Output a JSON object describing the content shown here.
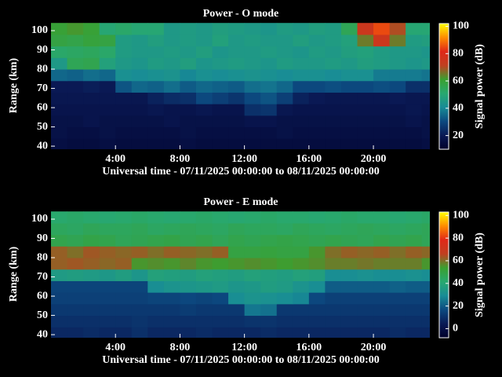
{
  "chart_data": [
    {
      "type": "heatmap",
      "title": "Power - O mode",
      "xlabel": "Universal time - 07/11/2025 00:00:00 to 08/11/2025 00:00:00",
      "ylabel": "Range (km)",
      "colorbar_label": "Signal power (dB)",
      "x": [
        0,
        1,
        2,
        3,
        4,
        5,
        6,
        7,
        8,
        9,
        10,
        11,
        12,
        13,
        14,
        15,
        16,
        17,
        18,
        19,
        20,
        21,
        22,
        23,
        23.5
      ],
      "y": [
        38,
        44,
        50,
        56,
        62,
        68,
        74,
        80,
        86,
        92,
        98,
        104
      ],
      "values": [
        [
          16,
          15,
          15,
          16,
          15,
          15,
          15,
          15,
          16,
          15,
          15,
          15,
          15,
          15,
          15,
          15,
          15,
          15,
          15,
          15,
          15,
          15,
          15,
          16
        ],
        [
          17,
          16,
          16,
          17,
          16,
          16,
          16,
          16,
          17,
          16,
          16,
          16,
          16,
          16,
          17,
          16,
          16,
          16,
          16,
          16,
          16,
          16,
          16,
          17
        ],
        [
          17,
          17,
          18,
          17,
          17,
          17,
          17,
          18,
          17,
          17,
          17,
          17,
          18,
          18,
          17,
          17,
          17,
          17,
          17,
          17,
          17,
          17,
          18,
          17
        ],
        [
          18,
          18,
          18,
          18,
          18,
          18,
          19,
          18,
          18,
          19,
          18,
          18,
          25,
          26,
          19,
          18,
          18,
          18,
          18,
          18,
          18,
          18,
          19,
          18
        ],
        [
          19,
          19,
          19,
          19,
          19,
          19,
          22,
          24,
          25,
          30,
          28,
          26,
          30,
          32,
          28,
          22,
          20,
          19,
          19,
          19,
          19,
          20,
          19,
          19
        ],
        [
          20,
          20,
          21,
          20,
          32,
          35,
          34,
          36,
          33,
          35,
          34,
          33,
          36,
          37,
          35,
          30,
          30,
          31,
          30,
          30,
          31,
          30,
          25,
          25
        ],
        [
          35,
          34,
          36,
          35,
          42,
          41,
          42,
          43,
          40,
          42,
          41,
          42,
          43,
          42,
          41,
          42,
          42,
          41,
          42,
          42,
          38,
          38,
          38,
          37
        ],
        [
          45,
          55,
          56,
          48,
          45,
          44,
          46,
          45,
          47,
          44,
          45,
          46,
          45,
          44,
          46,
          45,
          45,
          46,
          45,
          47,
          46,
          45,
          44,
          45
        ],
        [
          52,
          53,
          54,
          52,
          46,
          45,
          45,
          46,
          45,
          47,
          44,
          45,
          45,
          46,
          45,
          44,
          46,
          45,
          47,
          48,
          46,
          45,
          45,
          44
        ],
        [
          58,
          57,
          59,
          58,
          46,
          45,
          47,
          45,
          46,
          45,
          48,
          45,
          46,
          45,
          45,
          47,
          45,
          46,
          48,
          65,
          75,
          65,
          46,
          47
        ],
        [
          60,
          62,
          60,
          50,
          52,
          50,
          50,
          45,
          46,
          45,
          47,
          46,
          45,
          44,
          46,
          45,
          47,
          46,
          55,
          75,
          85,
          70,
          50,
          50
        ]
      ],
      "xlim": [
        0,
        23.5
      ],
      "ylim": [
        38.4,
        104.5
      ],
      "xticks": [
        {
          "value": 4,
          "label": "4:00"
        },
        {
          "value": 8,
          "label": "8:00"
        },
        {
          "value": 12,
          "label": "12:00"
        },
        {
          "value": 16,
          "label": "16:00"
        },
        {
          "value": 20,
          "label": "20:00"
        }
      ],
      "yticks": [
        40,
        50,
        60,
        70,
        80,
        90,
        100
      ],
      "clim": [
        10,
        102
      ],
      "cticks": [
        20,
        40,
        60,
        80,
        100
      ],
      "colormap": [
        "#00002a",
        "#0a1a55",
        "#0c4a80",
        "#188c96",
        "#28a870",
        "#3aa030",
        "#c04020",
        "#e02818",
        "#ff8c00",
        "#ffff00"
      ]
    },
    {
      "type": "heatmap",
      "title": "Power - E mode",
      "xlabel": "Universal time - 07/11/2025 00:00:00 to 08/11/2025 00:00:00",
      "ylabel": "Range (km)",
      "colorbar_label": "Signal power (dB)",
      "x": [
        0,
        1,
        2,
        3,
        4,
        5,
        6,
        7,
        8,
        9,
        10,
        11,
        12,
        13,
        14,
        15,
        16,
        17,
        18,
        19,
        20,
        21,
        22,
        23,
        23.5
      ],
      "y": [
        38,
        44,
        50,
        56,
        62,
        68,
        74,
        80,
        86,
        92,
        98,
        104
      ],
      "values": [
        [
          8,
          8,
          9,
          8,
          8,
          10,
          8,
          8,
          8,
          9,
          8,
          8,
          8,
          9,
          8,
          8,
          8,
          8,
          8,
          8,
          8,
          9,
          8,
          8
        ],
        [
          10,
          10,
          10,
          10,
          10,
          11,
          10,
          10,
          10,
          10,
          10,
          10,
          11,
          11,
          10,
          10,
          10,
          10,
          10,
          10,
          10,
          10,
          10,
          10
        ],
        [
          12,
          12,
          12,
          12,
          12,
          12,
          12,
          12,
          13,
          12,
          12,
          12,
          25,
          24,
          12,
          12,
          12,
          12,
          12,
          12,
          12,
          12,
          12,
          12
        ],
        [
          14,
          14,
          14,
          14,
          14,
          14,
          15,
          15,
          16,
          15,
          16,
          30,
          32,
          31,
          30,
          28,
          16,
          14,
          14,
          14,
          14,
          14,
          14,
          14
        ],
        [
          15,
          15,
          15,
          15,
          15,
          15,
          30,
          32,
          33,
          34,
          35,
          33,
          34,
          36,
          35,
          32,
          30,
          20,
          20,
          20,
          20,
          21,
          20,
          20
        ],
        [
          35,
          36,
          35,
          34,
          36,
          33,
          38,
          37,
          36,
          38,
          37,
          36,
          38,
          37,
          36,
          38,
          37,
          30,
          30,
          31,
          30,
          30,
          31,
          30
        ],
        [
          62,
          63,
          62,
          61,
          62,
          55,
          56,
          55,
          57,
          55,
          54,
          55,
          56,
          55,
          54,
          55,
          56,
          58,
          58,
          59,
          58,
          58,
          58,
          55
        ],
        [
          62,
          60,
          63,
          62,
          61,
          62,
          60,
          62,
          61,
          60,
          62,
          50,
          50,
          51,
          50,
          50,
          55,
          60,
          62,
          61,
          62,
          60,
          62,
          61
        ],
        [
          48,
          47,
          49,
          48,
          46,
          47,
          48,
          49,
          47,
          48,
          46,
          48,
          47,
          48,
          49,
          48,
          47,
          48,
          47,
          46,
          48,
          47,
          48,
          46
        ],
        [
          45,
          44,
          46,
          45,
          45,
          46,
          44,
          45,
          46,
          45,
          44,
          46,
          45,
          45,
          44,
          46,
          45,
          44,
          45,
          46,
          45,
          44,
          45,
          46
        ],
        [
          42,
          43,
          42,
          41,
          42,
          43,
          42,
          41,
          42,
          43,
          42,
          41,
          42,
          43,
          42,
          42,
          41,
          42,
          43,
          42,
          42,
          41,
          42,
          43
        ]
      ],
      "xlim": [
        0,
        23.5
      ],
      "ylim": [
        38.4,
        104.5
      ],
      "xticks": [
        {
          "value": 4,
          "label": "4:00"
        },
        {
          "value": 8,
          "label": "8:00"
        },
        {
          "value": 12,
          "label": "12:00"
        },
        {
          "value": 16,
          "label": "16:00"
        },
        {
          "value": 20,
          "label": "20:00"
        }
      ],
      "yticks": [
        40,
        50,
        60,
        70,
        80,
        90,
        100
      ],
      "clim": [
        -8,
        103
      ],
      "cticks": [
        0,
        20,
        40,
        60,
        80,
        100
      ],
      "colormap": [
        "#00002a",
        "#0a1a55",
        "#0c4a80",
        "#188c96",
        "#28a870",
        "#3aa030",
        "#c04020",
        "#e02818",
        "#ff8c00",
        "#ffff00"
      ]
    }
  ]
}
